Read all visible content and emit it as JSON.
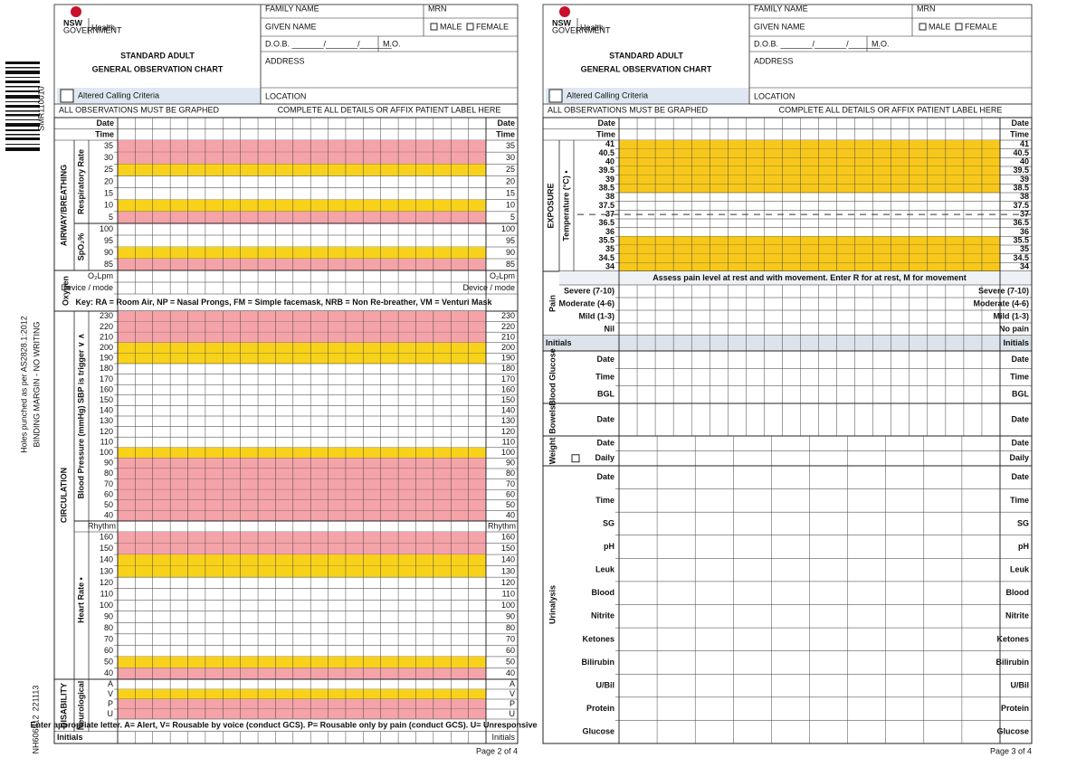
{
  "margin": {
    "barcode_text": "SMR110010",
    "holes": "Holes punched as per AS2828.1:2012",
    "binding": "BINDING MARGIN - NO WRITING",
    "form_code": "NH606512",
    "date_code": "221113"
  },
  "header": {
    "logo": "NSW",
    "logo_sub": "GOVERNMENT",
    "health": "Health",
    "title_1": "STANDARD ADULT",
    "title_2": "GENERAL OBSERVATION CHART",
    "altered": "Altered Calling Criteria",
    "family_name": "FAMILY NAME",
    "mrn": "MRN",
    "given_name": "GIVEN NAME",
    "male": "MALE",
    "female": "FEMALE",
    "dob": "D.O.B. _______/_______/_______",
    "mo": "M.O.",
    "address": "ADDRESS",
    "location": "LOCATION",
    "graphed": "ALL OBSERVATIONS MUST BE GRAPHED",
    "complete": "COMPLETE ALL DETAILS OR AFFIX PATIENT LABEL HERE"
  },
  "pages": [
    {
      "page": "Page 2 of 4",
      "date": "Date",
      "time": "Time",
      "groups": [
        {
          "title": "AIRWAY/BREATHING",
          "blocks": [
            {
              "label": "Respiratory Rate",
              "rows": [
                {
                  "label": "35",
                  "color": "#f4a3a8"
                },
                {
                  "label": "30",
                  "color": "#f4a3a8"
                },
                {
                  "label": "25",
                  "color": "#f8d21a"
                },
                {
                  "label": "20"
                },
                {
                  "label": "15"
                },
                {
                  "label": "10",
                  "color": "#f8d21a"
                },
                {
                  "label": "5",
                  "color": "#f4a3a8"
                }
              ]
            },
            {
              "label": "SpO₂%",
              "rows": [
                {
                  "label": "100"
                },
                {
                  "label": "95"
                },
                {
                  "label": "90",
                  "color": "#f8d21a"
                },
                {
                  "label": "85",
                  "color": "#f4a3a8"
                }
              ]
            }
          ]
        },
        {
          "blocks": [
            {
              "label": "Oxygen",
              "rows": [
                {
                  "label": "O₂Lpm"
                },
                {
                  "label": "Device / mode"
                }
              ],
              "note": "Key: RA = Room Air, NP = Nasal Prongs, FM = Simple facemask, NRB = Non Re-breather, VM = Venturi Mask"
            }
          ]
        },
        {
          "title": "CIRCULATION",
          "blocks": [
            {
              "label": "Blood Pressure (mmHg) SBP is trigger ∨ ∧",
              "rows": [
                {
                  "label": "230",
                  "color": "#f4a3a8"
                },
                {
                  "label": "220",
                  "color": "#f4a3a8"
                },
                {
                  "label": "210",
                  "color": "#f4a3a8"
                },
                {
                  "label": "200",
                  "color": "#f8d21a"
                },
                {
                  "label": "190",
                  "color": "#f8d21a"
                },
                {
                  "label": "180"
                },
                {
                  "label": "170"
                },
                {
                  "label": "160"
                },
                {
                  "label": "150"
                },
                {
                  "label": "140"
                },
                {
                  "label": "130"
                },
                {
                  "label": "120"
                },
                {
                  "label": "110"
                },
                {
                  "label": "100",
                  "color": "#f8d21a"
                },
                {
                  "label": "90",
                  "color": "#f4a3a8"
                },
                {
                  "label": "80",
                  "color": "#f4a3a8"
                },
                {
                  "label": "70",
                  "color": "#f4a3a8"
                },
                {
                  "label": "60",
                  "color": "#f4a3a8"
                },
                {
                  "label": "50",
                  "color": "#f4a3a8"
                },
                {
                  "label": "40",
                  "color": "#f4a3a8"
                }
              ]
            },
            {
              "label": "Heart Rate •",
              "header": "Rhythm",
              "rows": [
                {
                  "label": "160",
                  "color": "#f4a3a8"
                },
                {
                  "label": "150",
                  "color": "#f4a3a8"
                },
                {
                  "label": "140",
                  "color": "#f8d21a"
                },
                {
                  "label": "130",
                  "color": "#f8d21a"
                },
                {
                  "label": "120"
                },
                {
                  "label": "110"
                },
                {
                  "label": "100"
                },
                {
                  "label": "90"
                },
                {
                  "label": "80"
                },
                {
                  "label": "70"
                },
                {
                  "label": "60"
                },
                {
                  "label": "50",
                  "color": "#f8d21a"
                },
                {
                  "label": "40",
                  "color": "#f4a3a8"
                }
              ]
            }
          ]
        },
        {
          "title": "DISABILITY",
          "blocks": [
            {
              "label": "Neurological",
              "rows": [
                {
                  "label": "A"
                },
                {
                  "label": "V",
                  "color": "#f8d21a"
                },
                {
                  "label": "P",
                  "color": "#f4a3a8"
                },
                {
                  "label": "U",
                  "color": "#f4a3a8"
                }
              ],
              "note": "Enter appropriate letter. A= Alert, V= Rousable by voice (conduct GCS). P= Rousable only by pain (conduct GCS). U= Unresponsive"
            }
          ]
        },
        {
          "blocks": [
            {
              "rows": [
                {
                  "label": "Initials"
                }
              ]
            }
          ]
        }
      ]
    },
    {
      "page": "Page 3 of 4",
      "date": "Date",
      "time": "Time",
      "groups": [
        {
          "title": "EXPOSURE",
          "blocks": [
            {
              "label": "Temperature (°C) •",
              "rows": [
                {
                  "label": "41",
                  "color": "#f7c81b"
                },
                {
                  "label": "40.5",
                  "color": "#f7c81b"
                },
                {
                  "label": "40",
                  "color": "#f7c81b"
                },
                {
                  "label": "39.5",
                  "color": "#f7c81b"
                },
                {
                  "label": "39",
                  "color": "#f7c81b"
                },
                {
                  "label": "38.5",
                  "color": "#f7c81b"
                },
                {
                  "label": "38"
                },
                {
                  "label": "37.5"
                },
                {
                  "label": "37",
                  "dashed": true
                },
                {
                  "label": "36.5"
                },
                {
                  "label": "36"
                },
                {
                  "label": "35.5",
                  "color": "#f7c81b"
                },
                {
                  "label": "35",
                  "color": "#f7c81b"
                },
                {
                  "label": "34.5",
                  "color": "#f7c81b"
                },
                {
                  "label": "34",
                  "color": "#f7c81b"
                }
              ]
            }
          ]
        },
        {
          "blocks": [
            {
              "label": "Pain",
              "note_top": "Assess pain level at rest and with movement. Enter R for at rest, M for movement",
              "rows": [
                {
                  "label": "Severe (7-10)",
                  "right_label": "Severe (7-10)"
                },
                {
                  "label": "Moderate (4-6)",
                  "right_label": "Moderate (4-6)"
                },
                {
                  "label": "Mild (1-3)",
                  "right_label": "Mild (1-3)"
                },
                {
                  "label": "Nil",
                  "right_label": "No pain"
                }
              ]
            }
          ]
        },
        {
          "blocks": [
            {
              "rows": [
                {
                  "label": "Initials"
                }
              ]
            }
          ]
        },
        {
          "blocks": [
            {
              "label": "Blood Glucose",
              "rows": [
                {
                  "label": "Date"
                },
                {
                  "label": "Time"
                },
                {
                  "label": "BGL"
                }
              ]
            }
          ]
        },
        {
          "blocks": [
            {
              "label": "Bowels",
              "rows": [
                {
                  "label": "Date"
                }
              ]
            }
          ]
        },
        {
          "blocks": [
            {
              "label": "Weight",
              "rows": [
                {
                  "label": "Date"
                },
                {
                  "label": "Daily",
                  "checkbox": true
                }
              ]
            }
          ]
        },
        {
          "blocks": [
            {
              "label": "Urinalysis",
              "rows": [
                {
                  "label": "Date"
                },
                {
                  "label": "Time"
                },
                {
                  "label": "SG"
                },
                {
                  "label": "pH"
                },
                {
                  "label": "Leuk"
                },
                {
                  "label": "Blood"
                },
                {
                  "label": "Nitrite"
                },
                {
                  "label": "Ketones"
                },
                {
                  "label": "Bilirubin"
                },
                {
                  "label": "U/Bil"
                },
                {
                  "label": "Protein"
                },
                {
                  "label": "Glucose"
                }
              ]
            }
          ]
        }
      ]
    }
  ]
}
